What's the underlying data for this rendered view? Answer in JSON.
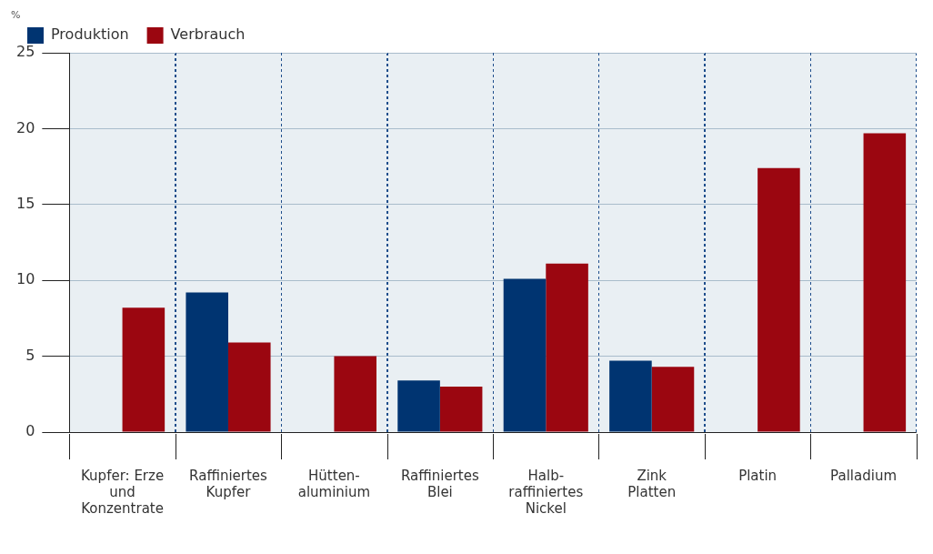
{
  "chart_data": {
    "type": "bar",
    "ylabel": "%",
    "categories": [
      "Kupfer: Erze\nund\nKonzentrate",
      "Raffiniertes\nKupfer",
      "Hütten-\naluminium",
      "Raffiniertes\nBlei",
      "Halb-\nraffiniertes\nNickel",
      "Zink\nPlatten",
      "Platin",
      "Palladium"
    ],
    "series": [
      {
        "name": "Produktion",
        "color": "#003471",
        "values": [
          null,
          9.2,
          null,
          3.4,
          10.1,
          4.7,
          null,
          null
        ]
      },
      {
        "name": "Verbrauch",
        "color": "#9b0610",
        "values": [
          8.2,
          5.9,
          5.0,
          3.0,
          11.1,
          4.3,
          17.4,
          19.7
        ]
      }
    ],
    "ylim": [
      0,
      25
    ],
    "yticks": [
      0,
      5,
      10,
      15,
      20,
      25
    ],
    "grid": true,
    "legend": "top left"
  }
}
